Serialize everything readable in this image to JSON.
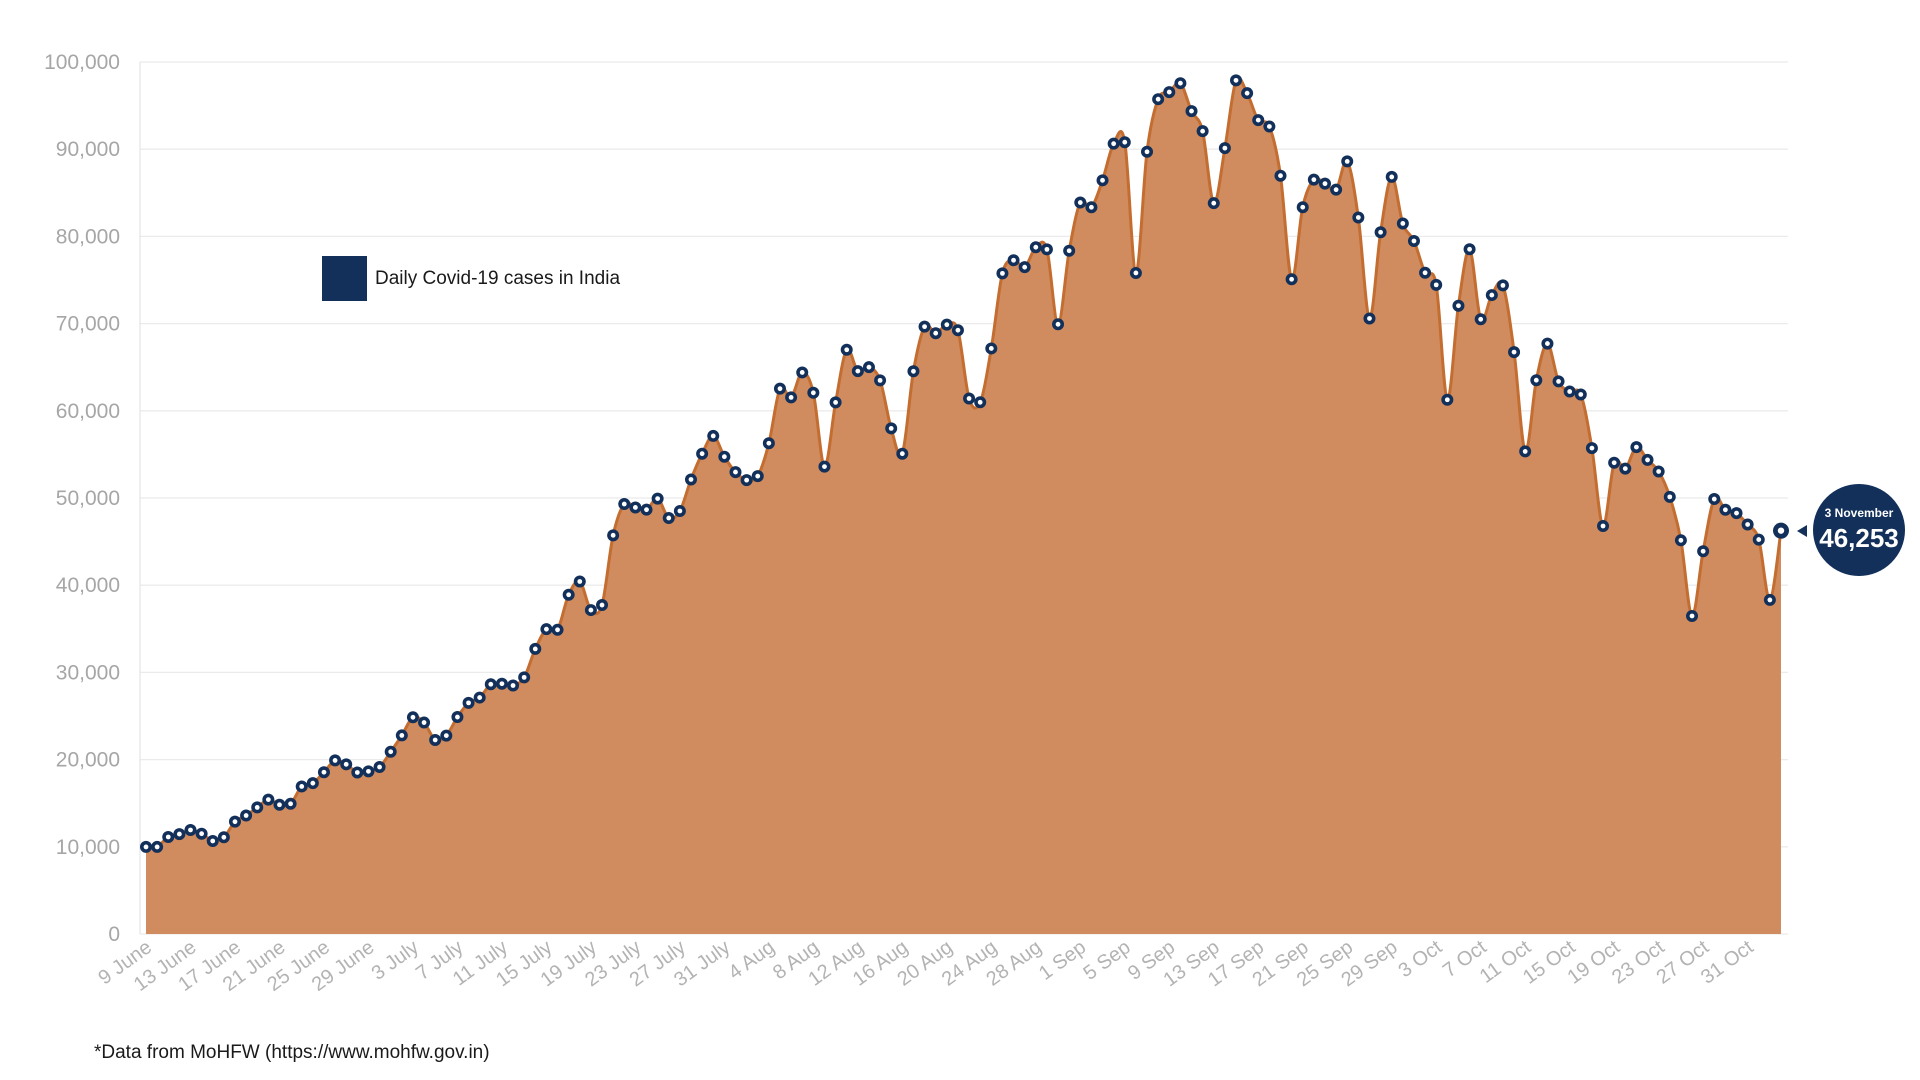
{
  "chart_data": {
    "type": "area",
    "title": "",
    "xlabel": "",
    "ylabel": "",
    "ylim": [
      0,
      100000
    ],
    "y_ticks": [
      "0",
      "10,000",
      "20,000",
      "30,000",
      "40,000",
      "50,000",
      "60,000",
      "70,000",
      "80,000",
      "90,000",
      "100,000"
    ],
    "x_start": "2020-06-09",
    "x_tick_labels": [
      "9 June",
      "13 June",
      "17 June",
      "21 June",
      "25 June",
      "29 June",
      "3 July",
      "7 July",
      "11 July",
      "15 July",
      "19 July",
      "23 July",
      "27 July",
      "31 July",
      "4 Aug",
      "8 Aug",
      "12 Aug",
      "16 Aug",
      "20 Aug",
      "24 Aug",
      "28 Aug",
      "1 Sep",
      "5 Sep",
      "9 Sep",
      "13 Sep",
      "17 Sep",
      "21 Sep",
      "25 Sep",
      "29 Sep",
      "3 Oct",
      "7 Oct",
      "11 Oct",
      "15 Oct",
      "19 Oct",
      "23 Oct",
      "27 Oct",
      "31 Oct"
    ],
    "grid": true,
    "legend_position": "top-left",
    "series": [
      {
        "name": "Daily Covid-19 cases in India",
        "fill_color": "#d08c5e",
        "line_color": "#c46d31",
        "marker_color": "#12305a",
        "values": [
          9987,
          9985,
          11128,
          11458,
          11929,
          11502,
          10667,
          11090,
          12881,
          13586,
          14516,
          15413,
          14821,
          14933,
          16922,
          17296,
          18552,
          19906,
          19459,
          18522,
          18653,
          19148,
          20903,
          22771,
          24850,
          24248,
          22252,
          22752,
          24879,
          26506,
          27114,
          28637,
          28701,
          28498,
          29429,
          32695,
          34956,
          34884,
          38902,
          40425,
          37148,
          37724,
          45720,
          49310,
          48916,
          48661,
          49931,
          47704,
          48513,
          52123,
          55079,
          57118,
          54736,
          52972,
          52050,
          52509,
          56282,
          62538,
          61537,
          64399,
          62064,
          53601,
          60963,
          66999,
          64553,
          65002,
          63490,
          57981,
          55079,
          64531,
          69652,
          68898,
          69878,
          69239,
          61408,
          60975,
          67151,
          75760,
          77266,
          76472,
          78761,
          78512,
          69921,
          78357,
          83883,
          83341,
          86432,
          90633,
          90802,
          75809,
          89706,
          95735,
          96551,
          97570,
          94372,
          92071,
          83809,
          90123,
          97894,
          96424,
          93337,
          92605,
          86961,
          75083,
          83347,
          86508,
          86052,
          85362,
          88600,
          82170,
          70589,
          80472,
          86821,
          81484,
          79476,
          75829,
          74442,
          61267,
          72049,
          78524,
          70496,
          73272,
          74383,
          66732,
          55342,
          63509,
          67708,
          63371,
          62212,
          61871,
          55722,
          46790,
          54044,
          53370,
          55838,
          54366,
          53041,
          50129,
          45148,
          36469,
          43893,
          49881,
          48648,
          48268,
          46963,
          45231,
          38310,
          46253
        ]
      }
    ],
    "annotation": {
      "date": "3 November",
      "value_label": "46,253"
    }
  },
  "legend": {
    "label": "Daily Covid-19 cases in India"
  },
  "source_note": "*Data from MoHFW (https://www.mohfw.gov.in)"
}
